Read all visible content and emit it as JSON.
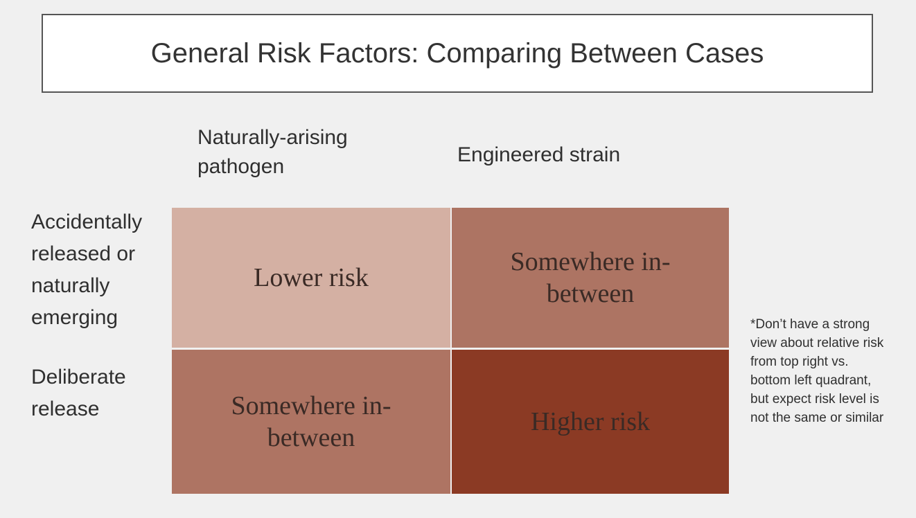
{
  "title": "General Risk Factors: Comparing Between Cases",
  "columns": [
    "Naturally-arising pathogen",
    "Engineered strain"
  ],
  "rows": [
    {
      "label": "Accidentally released or naturally emerging",
      "cells": [
        "Lower risk",
        "Somewhere in-between"
      ]
    },
    {
      "label": "Deliberate release",
      "cells": [
        "Somewhere in-between",
        "Higher risk"
      ]
    }
  ],
  "note": "*Don’t have a strong view about relative risk from top right vs. bottom left quadrant, but expect risk level is not the same or similar"
}
